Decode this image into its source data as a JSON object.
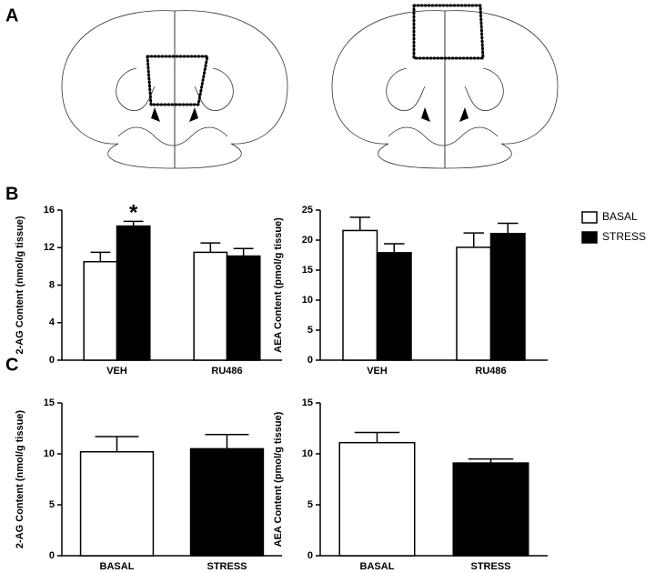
{
  "panels": [
    "A",
    "B",
    "C"
  ],
  "chart_data": [
    {
      "type": "bar",
      "y_label": "2-AG Content (nmol/g tissue)",
      "categories": [
        "VEH",
        "RU486"
      ],
      "series": [
        {
          "color": "#ffffff",
          "values": [
            10.5,
            11.5
          ],
          "errors": [
            1.0,
            1.0
          ]
        },
        {
          "color": "#000000",
          "values": [
            14.3,
            11.1
          ],
          "errors": [
            0.5,
            0.8
          ]
        }
      ],
      "ylim": [
        0,
        16
      ],
      "yticks": [
        0,
        4,
        8,
        12,
        16
      ],
      "annotation": "*"
    },
    {
      "type": "bar",
      "y_label": "AEA Content (pmol/g tissue)",
      "categories": [
        "VEH",
        "RU486"
      ],
      "series": [
        {
          "name": "BASAL",
          "color": "#ffffff",
          "values": [
            21.6,
            18.8
          ],
          "errors": [
            2.2,
            2.4
          ]
        },
        {
          "name": "STRESS",
          "color": "#000000",
          "values": [
            17.9,
            21.1
          ],
          "errors": [
            1.5,
            1.7
          ]
        }
      ],
      "ylim": [
        0,
        25
      ],
      "yticks": [
        0,
        5,
        10,
        15,
        20,
        25
      ],
      "legend": "right"
    },
    {
      "type": "bar",
      "y_label": "2-AG Content (nmol/g tissue)",
      "categories": [
        "BASAL",
        "STRESS"
      ],
      "values": [
        10.2,
        10.5
      ],
      "errors": [
        1.5,
        1.4
      ],
      "colors": [
        "#ffffff",
        "#000000"
      ],
      "ylim": [
        0,
        15
      ],
      "yticks": [
        0,
        5,
        10,
        15
      ]
    },
    {
      "type": "bar",
      "y_label": "AEA Content (pmol/g tissue)",
      "categories": [
        "BASAL",
        "STRESS"
      ],
      "values": [
        11.1,
        9.1
      ],
      "errors": [
        1.0,
        0.4
      ],
      "colors": [
        "#ffffff",
        "#000000"
      ],
      "ylim": [
        0,
        15
      ],
      "yticks": [
        0,
        5,
        10,
        15
      ]
    }
  ]
}
